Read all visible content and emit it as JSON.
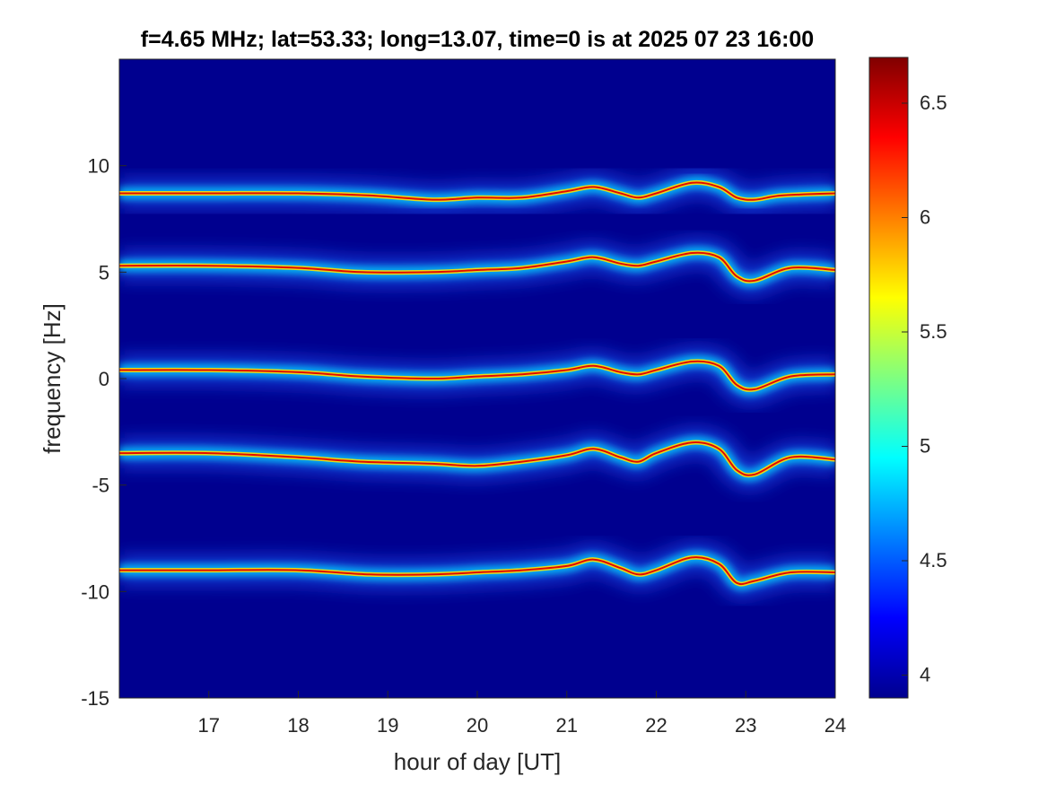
{
  "chart_data": {
    "type": "heatmap",
    "title": "f=4.65 MHz;  lat=53.33; long=13.07, time=0 is at 2025 07 23 16:00",
    "xlabel": "hour of day [UT]",
    "ylabel": "frequency [Hz]",
    "xlim": [
      16.0,
      24.0
    ],
    "ylim": [
      -15,
      15
    ],
    "x_ticks": [
      17,
      18,
      19,
      20,
      21,
      22,
      23,
      24
    ],
    "x_tick_labels": [
      "17",
      "18",
      "19",
      "20",
      "21",
      "22",
      "23",
      "24"
    ],
    "y_ticks": [
      10,
      5,
      0,
      -5,
      -10,
      -15
    ],
    "y_tick_labels": [
      "10",
      "5",
      "0",
      "-5",
      "-10",
      "-15"
    ],
    "colorbar": {
      "colormap": "jet",
      "clim": [
        3.9,
        6.7
      ],
      "ticks": [
        6.5,
        6,
        5.5,
        5,
        4.5,
        4
      ],
      "tick_labels": [
        "6.5",
        "6",
        "5.5",
        "5",
        "4.5",
        "4"
      ]
    },
    "grid": false,
    "background_color": "#00008f",
    "traces": [
      {
        "name": "trace-1",
        "points": [
          [
            16.0,
            8.7
          ],
          [
            17.0,
            8.7
          ],
          [
            18.0,
            8.7
          ],
          [
            18.8,
            8.6
          ],
          [
            19.5,
            8.4
          ],
          [
            20.0,
            8.5
          ],
          [
            20.5,
            8.5
          ],
          [
            21.0,
            8.8
          ],
          [
            21.3,
            9.0
          ],
          [
            21.6,
            8.7
          ],
          [
            21.8,
            8.5
          ],
          [
            22.0,
            8.7
          ],
          [
            22.4,
            9.2
          ],
          [
            22.7,
            9.0
          ],
          [
            22.9,
            8.5
          ],
          [
            23.1,
            8.4
          ],
          [
            23.4,
            8.6
          ],
          [
            24.0,
            8.7
          ]
        ]
      },
      {
        "name": "trace-2",
        "points": [
          [
            16.0,
            5.3
          ],
          [
            17.0,
            5.3
          ],
          [
            18.0,
            5.2
          ],
          [
            18.7,
            5.0
          ],
          [
            19.5,
            5.0
          ],
          [
            20.0,
            5.1
          ],
          [
            20.5,
            5.2
          ],
          [
            21.0,
            5.5
          ],
          [
            21.3,
            5.7
          ],
          [
            21.6,
            5.4
          ],
          [
            21.8,
            5.3
          ],
          [
            22.0,
            5.5
          ],
          [
            22.4,
            5.9
          ],
          [
            22.7,
            5.7
          ],
          [
            22.9,
            4.8
          ],
          [
            23.1,
            4.6
          ],
          [
            23.5,
            5.2
          ],
          [
            24.0,
            5.1
          ]
        ]
      },
      {
        "name": "trace-3",
        "points": [
          [
            16.0,
            0.4
          ],
          [
            17.0,
            0.4
          ],
          [
            18.0,
            0.3
          ],
          [
            18.7,
            0.1
          ],
          [
            19.5,
            0.0
          ],
          [
            20.0,
            0.1
          ],
          [
            20.5,
            0.2
          ],
          [
            21.0,
            0.4
          ],
          [
            21.3,
            0.6
          ],
          [
            21.6,
            0.3
          ],
          [
            21.8,
            0.2
          ],
          [
            22.0,
            0.4
          ],
          [
            22.4,
            0.8
          ],
          [
            22.7,
            0.6
          ],
          [
            22.9,
            -0.3
          ],
          [
            23.1,
            -0.5
          ],
          [
            23.5,
            0.1
          ],
          [
            24.0,
            0.2
          ]
        ]
      },
      {
        "name": "trace-4",
        "points": [
          [
            16.0,
            -3.5
          ],
          [
            17.0,
            -3.5
          ],
          [
            18.0,
            -3.7
          ],
          [
            18.7,
            -3.9
          ],
          [
            19.5,
            -4.0
          ],
          [
            20.0,
            -4.1
          ],
          [
            20.5,
            -3.9
          ],
          [
            21.0,
            -3.6
          ],
          [
            21.3,
            -3.3
          ],
          [
            21.6,
            -3.7
          ],
          [
            21.8,
            -3.9
          ],
          [
            22.0,
            -3.5
          ],
          [
            22.4,
            -3.0
          ],
          [
            22.7,
            -3.3
          ],
          [
            22.9,
            -4.3
          ],
          [
            23.1,
            -4.5
          ],
          [
            23.5,
            -3.7
          ],
          [
            24.0,
            -3.8
          ]
        ]
      },
      {
        "name": "trace-5",
        "points": [
          [
            16.0,
            -9.0
          ],
          [
            17.0,
            -9.0
          ],
          [
            18.0,
            -9.0
          ],
          [
            18.8,
            -9.2
          ],
          [
            19.5,
            -9.2
          ],
          [
            20.0,
            -9.1
          ],
          [
            20.5,
            -9.0
          ],
          [
            21.0,
            -8.8
          ],
          [
            21.3,
            -8.5
          ],
          [
            21.6,
            -8.9
          ],
          [
            21.8,
            -9.2
          ],
          [
            22.0,
            -9.0
          ],
          [
            22.4,
            -8.4
          ],
          [
            22.7,
            -8.7
          ],
          [
            22.9,
            -9.6
          ],
          [
            23.1,
            -9.5
          ],
          [
            23.5,
            -9.1
          ],
          [
            24.0,
            -9.1
          ]
        ]
      }
    ]
  }
}
